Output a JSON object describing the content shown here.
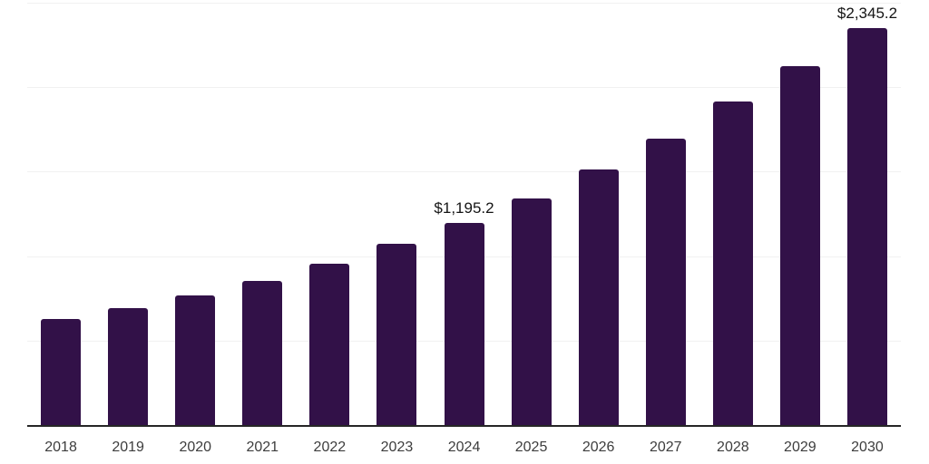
{
  "chart": {
    "background_color": "#ffffff",
    "bar_color": "#321148",
    "grid_color": "#f1f1f1",
    "axis_color": "#262626",
    "tick_label_color": "#3d3d3d",
    "data_label_color": "#141414"
  },
  "chart_data": {
    "type": "bar",
    "title": "",
    "xlabel": "",
    "ylabel": "",
    "categories": [
      "2018",
      "2019",
      "2020",
      "2021",
      "2022",
      "2023",
      "2024",
      "2025",
      "2026",
      "2027",
      "2028",
      "2029",
      "2030"
    ],
    "values": [
      628.1,
      695.0,
      769.1,
      854.7,
      954.7,
      1072.4,
      1195.2,
      1343.5,
      1510.6,
      1696.5,
      1913.7,
      2124.4,
      2345.2
    ],
    "data_labels": [
      {
        "category": "2024",
        "text": "$1,195.2"
      },
      {
        "category": "2030",
        "text": "$2,345.2"
      }
    ],
    "ylim": [
      0,
      2510
    ],
    "gridline_values": [
      500,
      1000,
      1500,
      2000,
      2500
    ],
    "grid": "horizontal",
    "legend": "none"
  }
}
